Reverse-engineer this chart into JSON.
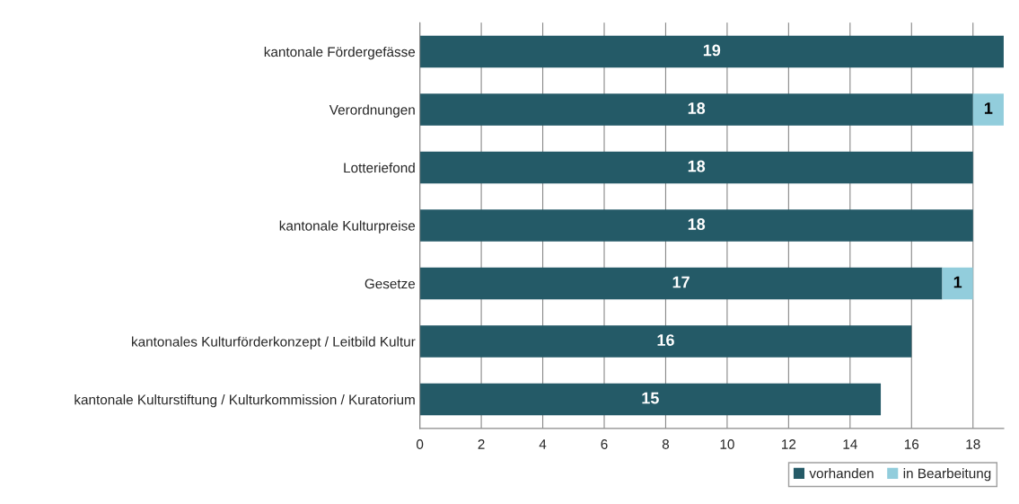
{
  "chart_data": {
    "type": "bar",
    "orientation": "horizontal",
    "stacked": true,
    "categories": [
      "kantonale Fördergefässe",
      "Verordnungen",
      "Lotteriefond",
      "kantonale Kulturpreise",
      "Gesetze",
      "kantonales Kulturförderkonzept / Leitbild Kultur",
      "kantonale Kulturstiftung / Kulturkommission / Kuratorium"
    ],
    "series": [
      {
        "name": "vorhanden",
        "color": "#245a67",
        "values": [
          19,
          18,
          18,
          18,
          17,
          16,
          15
        ]
      },
      {
        "name": "in Bearbeitung",
        "color": "#92cddc",
        "values": [
          null,
          1,
          null,
          null,
          1,
          null,
          null
        ]
      }
    ],
    "xlim": [
      0,
      19
    ],
    "xticks": [
      0,
      2,
      4,
      6,
      8,
      10,
      12,
      14,
      16,
      18
    ],
    "grid": "x",
    "legend": "bottom right",
    "data_labels": true
  }
}
